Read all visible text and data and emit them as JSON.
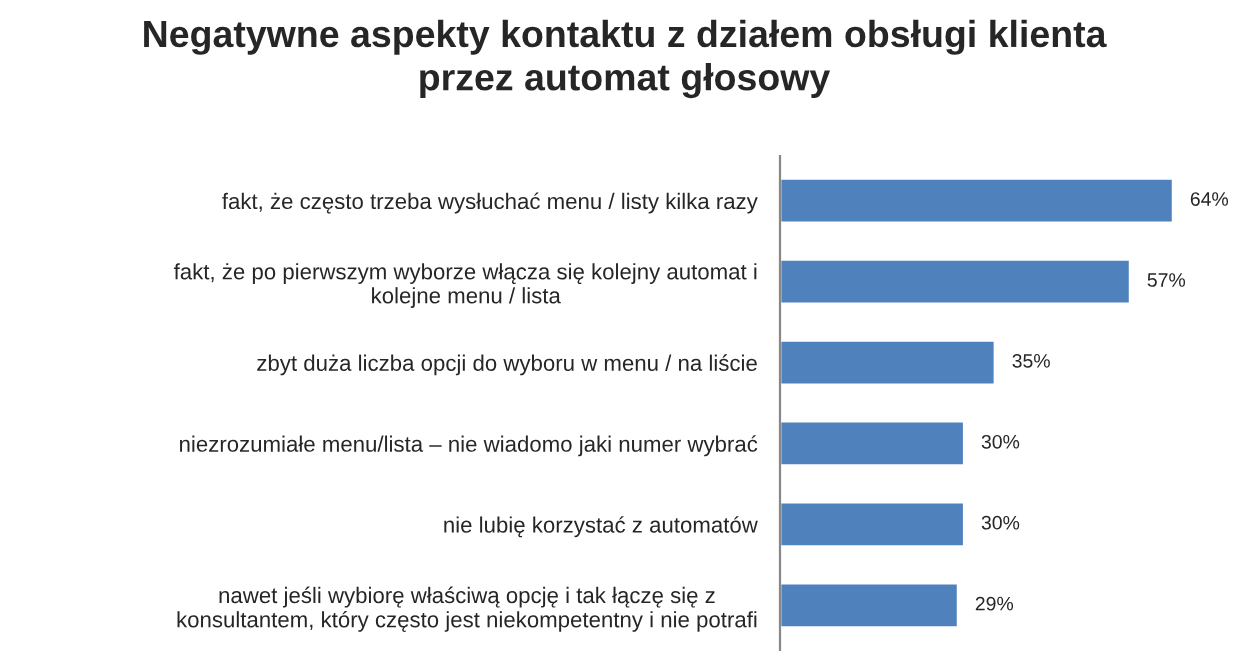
{
  "chart_data": {
    "type": "bar",
    "orientation": "horizontal",
    "title": "Negatywne aspekty kontaktu z działem obsługi klienta\nprzez automat głosowy",
    "categories": [
      "fakt, że często trzeba wysłuchać menu / listy kilka razy",
      "fakt, że po pierwszym wyborze włącza się kolejny automat i\nkolejne menu / lista",
      "zbyt duża liczba opcji do wyboru w menu / na liście",
      "niezrozumiałe menu/lista – nie wiadomo jaki numer wybrać",
      "nie lubię korzystać z automatów",
      "nawet jeśli wybiorę właściwą opcję i tak łączę się z\nkonsultantem, który często jest niekompetentny i nie potrafi"
    ],
    "values": [
      64,
      57,
      35,
      30,
      30,
      29
    ],
    "value_labels": [
      "64%",
      "57%",
      "35%",
      "30%",
      "30%",
      "29%"
    ],
    "color": "#4f81bd",
    "grid": false,
    "legend": false
  }
}
